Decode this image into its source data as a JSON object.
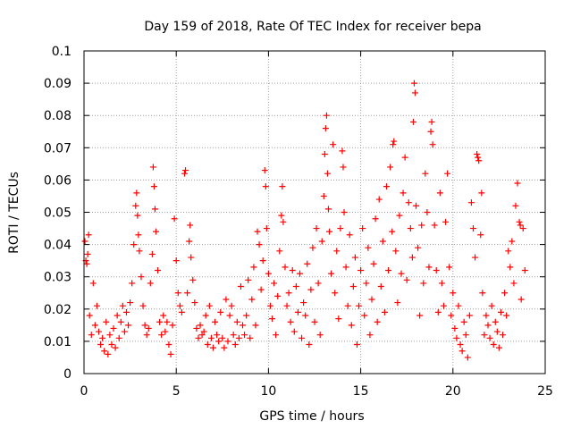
{
  "chart_data": {
    "type": "scatter",
    "title": "Day 159 of 2018, Rate Of TEC Index for receiver bepa",
    "xlabel": "GPS time / hours",
    "ylabel": "ROTI / TECUs",
    "xlim": [
      0,
      25
    ],
    "ylim": [
      0,
      0.1
    ],
    "xticks": [
      0,
      5,
      10,
      15,
      20,
      25
    ],
    "xtick_labels": [
      "0",
      "5",
      "10",
      "15",
      "20",
      "25"
    ],
    "yticks": [
      0,
      0.01,
      0.02,
      0.03,
      0.04,
      0.05,
      0.06,
      0.07,
      0.08,
      0.09,
      0.1
    ],
    "ytick_labels": [
      "0",
      "0.01",
      "0.02",
      "0.03",
      "0.04",
      "0.05",
      "0.06",
      "0.07",
      "0.08",
      "0.09",
      "0.1"
    ],
    "grid": true,
    "marker": "plus",
    "color": "#ff0000",
    "series": [
      {
        "name": "ROTI",
        "points": [
          [
            0.05,
            0.041
          ],
          [
            0.1,
            0.035
          ],
          [
            0.15,
            0.034
          ],
          [
            0.2,
            0.037
          ],
          [
            0.25,
            0.043
          ],
          [
            0.3,
            0.018
          ],
          [
            0.4,
            0.012
          ],
          [
            0.5,
            0.028
          ],
          [
            0.6,
            0.015
          ],
          [
            0.7,
            0.021
          ],
          [
            0.8,
            0.013
          ],
          [
            0.9,
            0.009
          ],
          [
            1.0,
            0.011
          ],
          [
            1.1,
            0.007
          ],
          [
            1.2,
            0.016
          ],
          [
            1.3,
            0.006
          ],
          [
            1.4,
            0.012
          ],
          [
            1.5,
            0.009
          ],
          [
            1.6,
            0.014
          ],
          [
            1.7,
            0.008
          ],
          [
            1.8,
            0.018
          ],
          [
            1.9,
            0.011
          ],
          [
            2.0,
            0.016
          ],
          [
            2.1,
            0.021
          ],
          [
            2.2,
            0.013
          ],
          [
            2.3,
            0.019
          ],
          [
            2.4,
            0.015
          ],
          [
            2.5,
            0.022
          ],
          [
            2.6,
            0.028
          ],
          [
            2.7,
            0.04
          ],
          [
            2.8,
            0.052
          ],
          [
            2.85,
            0.056
          ],
          [
            2.9,
            0.049
          ],
          [
            2.95,
            0.043
          ],
          [
            3.0,
            0.038
          ],
          [
            3.1,
            0.03
          ],
          [
            3.2,
            0.021
          ],
          [
            3.3,
            0.015
          ],
          [
            3.4,
            0.012
          ],
          [
            3.5,
            0.014
          ],
          [
            3.6,
            0.028
          ],
          [
            3.7,
            0.037
          ],
          [
            3.75,
            0.064
          ],
          [
            3.8,
            0.058
          ],
          [
            3.85,
            0.051
          ],
          [
            3.9,
            0.044
          ],
          [
            4.0,
            0.032
          ],
          [
            4.1,
            0.016
          ],
          [
            4.2,
            0.012
          ],
          [
            4.3,
            0.018
          ],
          [
            4.4,
            0.013
          ],
          [
            4.5,
            0.016
          ],
          [
            4.6,
            0.009
          ],
          [
            4.7,
            0.006
          ],
          [
            4.8,
            0.015
          ],
          [
            4.9,
            0.048
          ],
          [
            5.0,
            0.035
          ],
          [
            5.1,
            0.025
          ],
          [
            5.2,
            0.021
          ],
          [
            5.3,
            0.019
          ],
          [
            5.45,
            0.062
          ],
          [
            5.5,
            0.063
          ],
          [
            5.6,
            0.025
          ],
          [
            5.7,
            0.041
          ],
          [
            5.75,
            0.046
          ],
          [
            5.8,
            0.036
          ],
          [
            5.9,
            0.029
          ],
          [
            6.0,
            0.022
          ],
          [
            6.1,
            0.014
          ],
          [
            6.2,
            0.011
          ],
          [
            6.3,
            0.015
          ],
          [
            6.4,
            0.012
          ],
          [
            6.5,
            0.013
          ],
          [
            6.6,
            0.018
          ],
          [
            6.7,
            0.009
          ],
          [
            6.8,
            0.021
          ],
          [
            6.9,
            0.011
          ],
          [
            7.0,
            0.008
          ],
          [
            7.1,
            0.016
          ],
          [
            7.2,
            0.012
          ],
          [
            7.3,
            0.01
          ],
          [
            7.4,
            0.019
          ],
          [
            7.5,
            0.011
          ],
          [
            7.6,
            0.008
          ],
          [
            7.7,
            0.023
          ],
          [
            7.8,
            0.01
          ],
          [
            7.9,
            0.018
          ],
          [
            8.0,
            0.021
          ],
          [
            8.1,
            0.012
          ],
          [
            8.2,
            0.009
          ],
          [
            8.3,
            0.016
          ],
          [
            8.4,
            0.011
          ],
          [
            8.5,
            0.027
          ],
          [
            8.6,
            0.015
          ],
          [
            8.7,
            0.012
          ],
          [
            8.8,
            0.018
          ],
          [
            8.9,
            0.029
          ],
          [
            9.0,
            0.011
          ],
          [
            9.1,
            0.023
          ],
          [
            9.2,
            0.033
          ],
          [
            9.3,
            0.015
          ],
          [
            9.4,
            0.044
          ],
          [
            9.5,
            0.04
          ],
          [
            9.6,
            0.026
          ],
          [
            9.7,
            0.035
          ],
          [
            9.8,
            0.063
          ],
          [
            9.85,
            0.058
          ],
          [
            9.9,
            0.045
          ],
          [
            10.0,
            0.031
          ],
          [
            10.1,
            0.021
          ],
          [
            10.2,
            0.017
          ],
          [
            10.3,
            0.028
          ],
          [
            10.4,
            0.012
          ],
          [
            10.5,
            0.024
          ],
          [
            10.6,
            0.038
          ],
          [
            10.7,
            0.049
          ],
          [
            10.75,
            0.058
          ],
          [
            10.8,
            0.047
          ],
          [
            10.9,
            0.033
          ],
          [
            11.0,
            0.021
          ],
          [
            11.1,
            0.025
          ],
          [
            11.2,
            0.016
          ],
          [
            11.3,
            0.032
          ],
          [
            11.4,
            0.013
          ],
          [
            11.5,
            0.027
          ],
          [
            11.6,
            0.019
          ],
          [
            11.7,
            0.031
          ],
          [
            11.8,
            0.011
          ],
          [
            11.9,
            0.022
          ],
          [
            12.0,
            0.018
          ],
          [
            12.1,
            0.034
          ],
          [
            12.2,
            0.009
          ],
          [
            12.3,
            0.026
          ],
          [
            12.4,
            0.039
          ],
          [
            12.5,
            0.016
          ],
          [
            12.6,
            0.045
          ],
          [
            12.7,
            0.028
          ],
          [
            12.8,
            0.012
          ],
          [
            12.9,
            0.041
          ],
          [
            13.0,
            0.055
          ],
          [
            13.05,
            0.068
          ],
          [
            13.1,
            0.076
          ],
          [
            13.15,
            0.08
          ],
          [
            13.2,
            0.062
          ],
          [
            13.25,
            0.051
          ],
          [
            13.3,
            0.044
          ],
          [
            13.4,
            0.031
          ],
          [
            13.5,
            0.071
          ],
          [
            13.6,
            0.025
          ],
          [
            13.7,
            0.038
          ],
          [
            13.8,
            0.017
          ],
          [
            13.9,
            0.045
          ],
          [
            14.0,
            0.069
          ],
          [
            14.05,
            0.064
          ],
          [
            14.1,
            0.05
          ],
          [
            14.2,
            0.033
          ],
          [
            14.3,
            0.021
          ],
          [
            14.4,
            0.043
          ],
          [
            14.5,
            0.015
          ],
          [
            14.6,
            0.027
          ],
          [
            14.7,
            0.036
          ],
          [
            14.8,
            0.009
          ],
          [
            14.9,
            0.021
          ],
          [
            15.0,
            0.032
          ],
          [
            15.1,
            0.045
          ],
          [
            15.2,
            0.018
          ],
          [
            15.3,
            0.028
          ],
          [
            15.4,
            0.039
          ],
          [
            15.5,
            0.012
          ],
          [
            15.6,
            0.023
          ],
          [
            15.7,
            0.034
          ],
          [
            15.8,
            0.048
          ],
          [
            15.9,
            0.016
          ],
          [
            16.0,
            0.054
          ],
          [
            16.1,
            0.027
          ],
          [
            16.2,
            0.041
          ],
          [
            16.3,
            0.019
          ],
          [
            16.4,
            0.058
          ],
          [
            16.5,
            0.032
          ],
          [
            16.6,
            0.064
          ],
          [
            16.7,
            0.044
          ],
          [
            16.75,
            0.071
          ],
          [
            16.8,
            0.072
          ],
          [
            16.9,
            0.038
          ],
          [
            17.0,
            0.022
          ],
          [
            17.1,
            0.049
          ],
          [
            17.2,
            0.031
          ],
          [
            17.3,
            0.056
          ],
          [
            17.4,
            0.067
          ],
          [
            17.5,
            0.029
          ],
          [
            17.6,
            0.053
          ],
          [
            17.7,
            0.045
          ],
          [
            17.8,
            0.036
          ],
          [
            17.85,
            0.078
          ],
          [
            17.9,
            0.09
          ],
          [
            17.95,
            0.087
          ],
          [
            18.0,
            0.052
          ],
          [
            18.1,
            0.039
          ],
          [
            18.2,
            0.018
          ],
          [
            18.3,
            0.046
          ],
          [
            18.4,
            0.028
          ],
          [
            18.5,
            0.062
          ],
          [
            18.6,
            0.05
          ],
          [
            18.7,
            0.033
          ],
          [
            18.8,
            0.075
          ],
          [
            18.85,
            0.078
          ],
          [
            18.9,
            0.071
          ],
          [
            19.0,
            0.046
          ],
          [
            19.1,
            0.032
          ],
          [
            19.2,
            0.019
          ],
          [
            19.3,
            0.056
          ],
          [
            19.4,
            0.028
          ],
          [
            19.5,
            0.021
          ],
          [
            19.6,
            0.047
          ],
          [
            19.7,
            0.062
          ],
          [
            19.8,
            0.033
          ],
          [
            19.9,
            0.018
          ],
          [
            20.0,
            0.025
          ],
          [
            20.1,
            0.014
          ],
          [
            20.2,
            0.011
          ],
          [
            20.3,
            0.021
          ],
          [
            20.4,
            0.009
          ],
          [
            20.5,
            0.007
          ],
          [
            20.6,
            0.016
          ],
          [
            20.7,
            0.012
          ],
          [
            20.8,
            0.005
          ],
          [
            20.9,
            0.018
          ],
          [
            21.0,
            0.053
          ],
          [
            21.1,
            0.045
          ],
          [
            21.2,
            0.036
          ],
          [
            21.3,
            0.068
          ],
          [
            21.35,
            0.067
          ],
          [
            21.4,
            0.066
          ],
          [
            21.5,
            0.043
          ],
          [
            21.55,
            0.056
          ],
          [
            21.6,
            0.025
          ],
          [
            21.7,
            0.012
          ],
          [
            21.8,
            0.018
          ],
          [
            21.9,
            0.015
          ],
          [
            22.0,
            0.011
          ],
          [
            22.1,
            0.021
          ],
          [
            22.2,
            0.009
          ],
          [
            22.3,
            0.016
          ],
          [
            22.4,
            0.013
          ],
          [
            22.5,
            0.008
          ],
          [
            22.6,
            0.019
          ],
          [
            22.7,
            0.012
          ],
          [
            22.8,
            0.025
          ],
          [
            22.9,
            0.018
          ],
          [
            23.0,
            0.038
          ],
          [
            23.1,
            0.033
          ],
          [
            23.2,
            0.041
          ],
          [
            23.3,
            0.028
          ],
          [
            23.4,
            0.052
          ],
          [
            23.5,
            0.059
          ],
          [
            23.6,
            0.047
          ],
          [
            23.65,
            0.046
          ],
          [
            23.7,
            0.023
          ],
          [
            23.8,
            0.045
          ],
          [
            23.9,
            0.032
          ]
        ]
      }
    ]
  }
}
